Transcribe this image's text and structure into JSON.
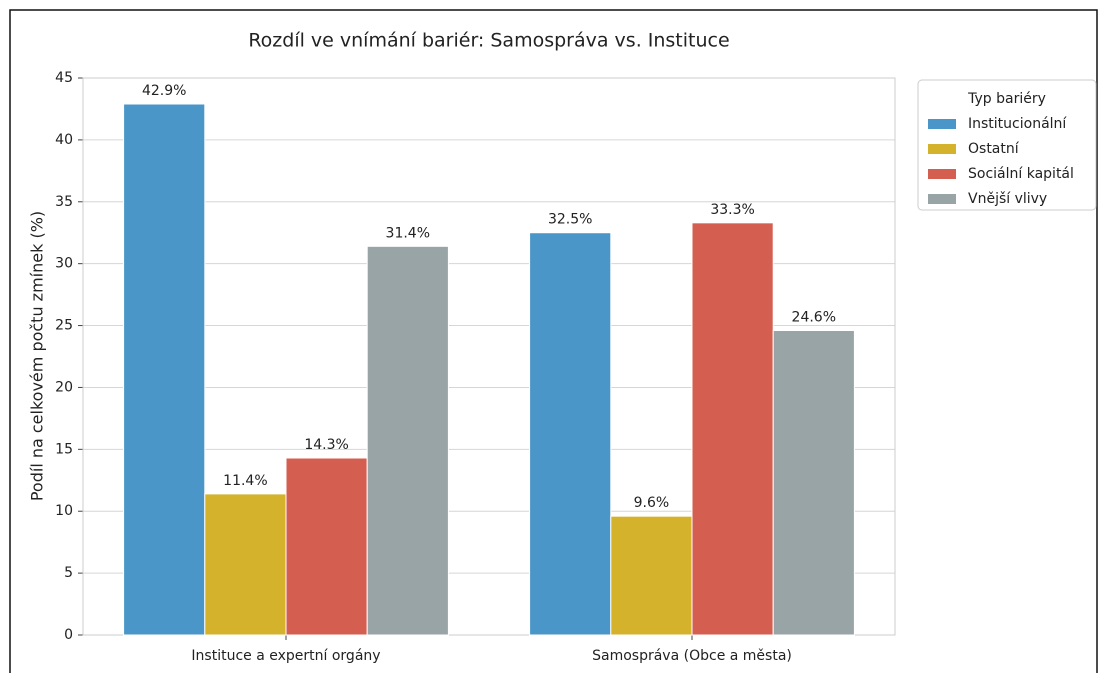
{
  "chart_data": {
    "type": "bar",
    "title": "Rozdíl ve vnímání bariér: Samospráva vs. Instituce",
    "ylabel": "Podíl na celkovém počtu zmínek (%)",
    "categories": [
      "Instituce a expertní orgány",
      "Samospráva (Obce a města)"
    ],
    "series": [
      {
        "name": "Institucionální",
        "color": "#4a96c9",
        "values": [
          42.9,
          32.5
        ],
        "value_labels": [
          "42.9%",
          "32.5%"
        ]
      },
      {
        "name": "Ostatní",
        "color": "#d4b22c",
        "values": [
          11.4,
          9.6
        ],
        "value_labels": [
          "11.4%",
          "9.6%"
        ]
      },
      {
        "name": "Sociální kapitál",
        "color": "#d45e4f",
        "values": [
          14.3,
          33.3
        ],
        "value_labels": [
          "14.3%",
          "33.3%"
        ]
      },
      {
        "name": "Vnější vlivy",
        "color": "#98a4a6",
        "values": [
          31.4,
          24.6
        ],
        "value_labels": [
          "31.4%",
          "24.6%"
        ]
      }
    ],
    "legend_title": "Typ bariéry",
    "legend": "outside-upper-right",
    "ylim": [
      0,
      45
    ],
    "yticks": [
      0,
      5,
      10,
      15,
      20,
      25,
      30,
      35,
      40,
      45
    ],
    "grid": true
  }
}
